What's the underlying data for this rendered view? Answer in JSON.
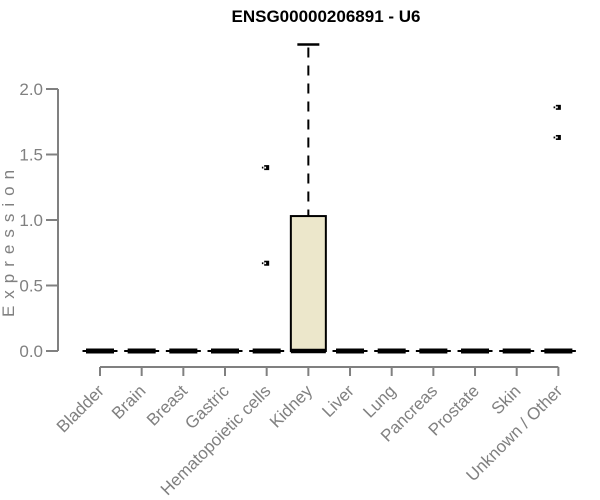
{
  "chart_data": {
    "type": "boxplot",
    "title": "ENSG00000206891 - U6",
    "xlabel": "",
    "ylabel": "Expression",
    "ylim": [
      0,
      2.35
    ],
    "yticks": [
      0,
      0.5,
      1,
      1.5,
      2
    ],
    "ytick_labels": [
      "0.0",
      "0.5",
      "1.0",
      "1.5",
      "2.0"
    ],
    "grid": false,
    "legend": false,
    "categories": [
      "Bladder",
      "Brain",
      "Breast",
      "Gastric",
      "Hematopoietic cells",
      "Kidney",
      "Liver",
      "Lung",
      "Pancreas",
      "Prostate",
      "Skin",
      "Unknown / Other"
    ],
    "boxes": [
      {
        "category": "Bladder",
        "min": 0,
        "q1": 0,
        "median": 0,
        "q3": 0,
        "max": 0,
        "outliers": []
      },
      {
        "category": "Brain",
        "min": 0,
        "q1": 0,
        "median": 0,
        "q3": 0,
        "max": 0,
        "outliers": []
      },
      {
        "category": "Breast",
        "min": 0,
        "q1": 0,
        "median": 0,
        "q3": 0,
        "max": 0,
        "outliers": []
      },
      {
        "category": "Gastric",
        "min": 0,
        "q1": 0,
        "median": 0,
        "q3": 0,
        "max": 0,
        "outliers": []
      },
      {
        "category": "Hematopoietic cells",
        "min": 0,
        "q1": 0,
        "median": 0,
        "q3": 0,
        "max": 0,
        "outliers": [
          0.67,
          1.4
        ]
      },
      {
        "category": "Kidney",
        "min": 0,
        "q1": 0,
        "median": 0,
        "q3": 1.03,
        "max": 2.34,
        "outliers": []
      },
      {
        "category": "Liver",
        "min": 0,
        "q1": 0,
        "median": 0,
        "q3": 0,
        "max": 0,
        "outliers": []
      },
      {
        "category": "Lung",
        "min": 0,
        "q1": 0,
        "median": 0,
        "q3": 0,
        "max": 0,
        "outliers": []
      },
      {
        "category": "Pancreas",
        "min": 0,
        "q1": 0,
        "median": 0,
        "q3": 0,
        "max": 0,
        "outliers": []
      },
      {
        "category": "Prostate",
        "min": 0,
        "q1": 0,
        "median": 0,
        "q3": 0,
        "max": 0,
        "outliers": []
      },
      {
        "category": "Skin",
        "min": 0,
        "q1": 0,
        "median": 0,
        "q3": 0,
        "max": 0,
        "outliers": []
      },
      {
        "category": "Unknown / Other",
        "min": 0,
        "q1": 0,
        "median": 0,
        "q3": 0,
        "max": 0,
        "outliers": [
          1.63,
          1.86
        ]
      }
    ],
    "colors": {
      "background": "#FFFFFF",
      "axis": "#808080",
      "tick_label": "#808080",
      "title_color": "#000000",
      "box_fill": "#ECE7CB",
      "box_stroke": "#000000"
    }
  }
}
